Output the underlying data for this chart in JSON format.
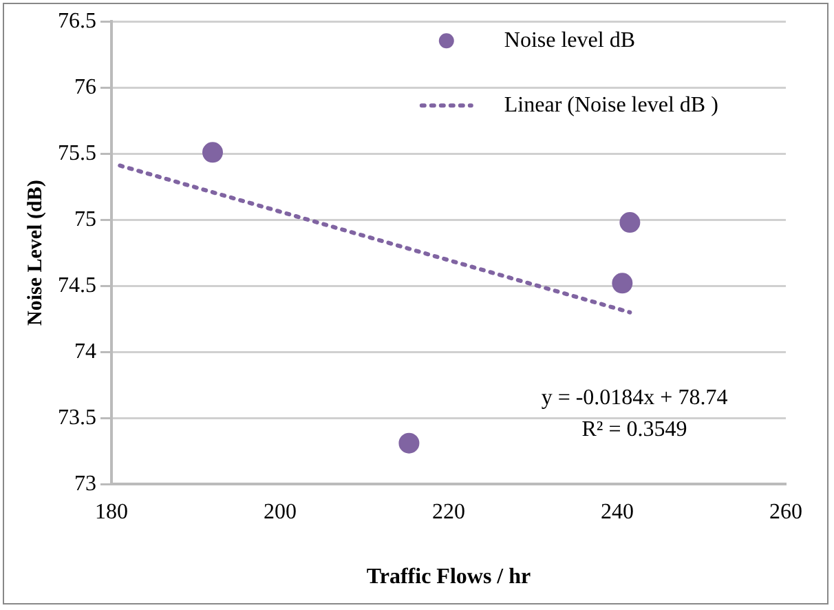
{
  "chart_data": {
    "type": "scatter",
    "xlabel": "Traffic Flows / hr",
    "ylabel": "Noise Level (dB)",
    "xlim": [
      180,
      260
    ],
    "xticks": [
      180,
      200,
      220,
      240,
      260
    ],
    "ylim": [
      73,
      76.5
    ],
    "yticks": [
      73,
      73.5,
      74,
      74.5,
      75,
      75.5,
      76,
      76.5
    ],
    "grid": "y",
    "legend": "top right",
    "series": [
      {
        "name": "Noise level dB",
        "type": "scatter",
        "color": "#8064a2",
        "marker": "circle",
        "x": [
          192,
          215.3,
          241.5,
          240.6
        ],
        "values": [
          75.51,
          73.31,
          74.98,
          74.52
        ]
      },
      {
        "name": "Linear (Noise level dB )",
        "type": "line",
        "color": "#8064a2",
        "marker": "none",
        "line_style": "dotted",
        "x": [
          181,
          241.5
        ],
        "values": [
          75.41,
          74.3
        ]
      }
    ],
    "annotations": [
      "y = -0.0184x + 78.74",
      "R² = 0.3549"
    ]
  }
}
